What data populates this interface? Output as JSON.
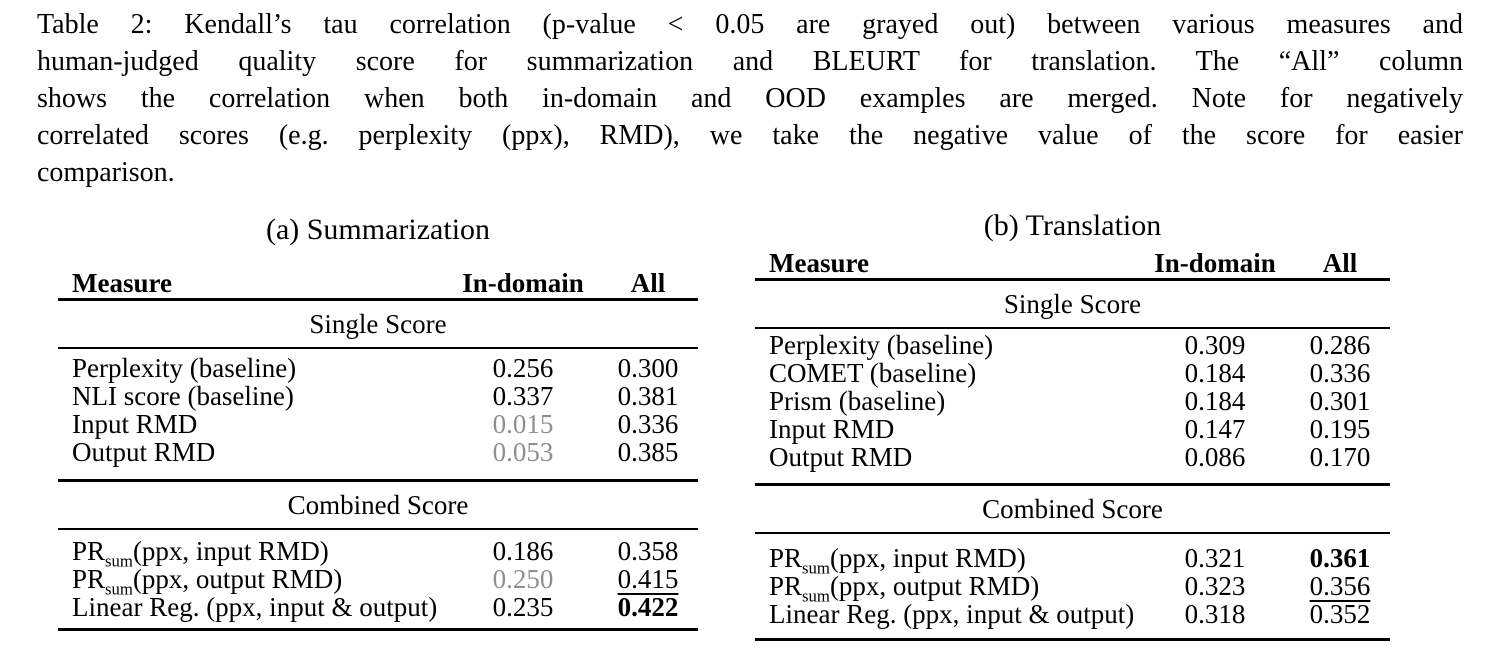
{
  "caption": {
    "lines": [
      "Table 2: Kendall’s tau correlation (p-value < 0.05 are grayed out) between various measures and",
      "human-judged quality score for summarization and BLEURT for translation. The “All” column",
      "shows the correlation when both in-domain and OOD examples are merged. Note for negatively",
      "correlated scores (e.g. perplexity (ppx), RMD), we take the negative value of the score for easier",
      "comparison."
    ]
  },
  "colors": {
    "text": "#000000",
    "grayed_value": "#8f8f8f",
    "background": "#ffffff"
  },
  "tables": [
    {
      "caption": "(a) Summarization",
      "columns": {
        "measure": "Measure",
        "in_domain": "In-domain",
        "all": "All"
      },
      "sections": [
        {
          "title": "Single Score",
          "rows": [
            {
              "measure": "Perplexity (baseline)",
              "measure_sub": "",
              "measure_rest": "",
              "in_domain": "0.256",
              "in_domain_style": "normal",
              "all": "0.300",
              "all_style": "normal"
            },
            {
              "measure": "NLI score (baseline)",
              "measure_sub": "",
              "measure_rest": "",
              "in_domain": "0.337",
              "in_domain_style": "normal",
              "all": "0.381",
              "all_style": "normal"
            },
            {
              "measure": "Input RMD",
              "measure_sub": "",
              "measure_rest": "",
              "in_domain": "0.015",
              "in_domain_style": "gray",
              "all": "0.336",
              "all_style": "normal"
            },
            {
              "measure": "Output RMD",
              "measure_sub": "",
              "measure_rest": "",
              "in_domain": "0.053",
              "in_domain_style": "gray",
              "all": "0.385",
              "all_style": "normal"
            }
          ]
        },
        {
          "title": "Combined Score",
          "rows": [
            {
              "measure": "PR",
              "measure_sub": "sum",
              "measure_rest": "(ppx, input RMD)",
              "in_domain": "0.186",
              "in_domain_style": "normal",
              "all": "0.358",
              "all_style": "normal"
            },
            {
              "measure": "PR",
              "measure_sub": "sum",
              "measure_rest": "(ppx, output RMD)",
              "in_domain": "0.250",
              "in_domain_style": "gray",
              "all": "0.415",
              "all_style": "underline"
            },
            {
              "measure": "Linear Reg. (ppx, input & output)",
              "measure_sub": "",
              "measure_rest": "",
              "in_domain": "0.235",
              "in_domain_style": "normal",
              "all": "0.422",
              "all_style": "bold"
            }
          ]
        }
      ]
    },
    {
      "caption": "(b) Translation",
      "columns": {
        "measure": "Measure",
        "in_domain": "In-domain",
        "all": "All"
      },
      "sections": [
        {
          "title": "Single Score",
          "rows": [
            {
              "measure": "Perplexity (baseline)",
              "measure_sub": "",
              "measure_rest": "",
              "in_domain": "0.309",
              "in_domain_style": "normal",
              "all": "0.286",
              "all_style": "normal"
            },
            {
              "measure": "COMET (baseline)",
              "measure_sub": "",
              "measure_rest": "",
              "in_domain": "0.184",
              "in_domain_style": "normal",
              "all": "0.336",
              "all_style": "normal"
            },
            {
              "measure": "Prism (baseline)",
              "measure_sub": "",
              "measure_rest": "",
              "in_domain": "0.184",
              "in_domain_style": "normal",
              "all": "0.301",
              "all_style": "normal"
            },
            {
              "measure": "Input RMD",
              "measure_sub": "",
              "measure_rest": "",
              "in_domain": "0.147",
              "in_domain_style": "normal",
              "all": "0.195",
              "all_style": "normal"
            },
            {
              "measure": "Output RMD",
              "measure_sub": "",
              "measure_rest": "",
              "in_domain": "0.086",
              "in_domain_style": "normal",
              "all": "0.170",
              "all_style": "normal"
            }
          ]
        },
        {
          "title": "Combined Score",
          "rows": [
            {
              "measure": "PR",
              "measure_sub": "sum",
              "measure_rest": "(ppx, input RMD)",
              "in_domain": "0.321",
              "in_domain_style": "normal",
              "all": "0.361",
              "all_style": "bold"
            },
            {
              "measure": "PR",
              "measure_sub": "sum",
              "measure_rest": "(ppx, output RMD)",
              "in_domain": "0.323",
              "in_domain_style": "normal",
              "all": "0.356",
              "all_style": "underline"
            },
            {
              "measure": "Linear Reg. (ppx, input & output)",
              "measure_sub": "",
              "measure_rest": "",
              "in_domain": "0.318",
              "in_domain_style": "normal",
              "all": "0.352",
              "all_style": "normal"
            }
          ]
        }
      ]
    }
  ]
}
